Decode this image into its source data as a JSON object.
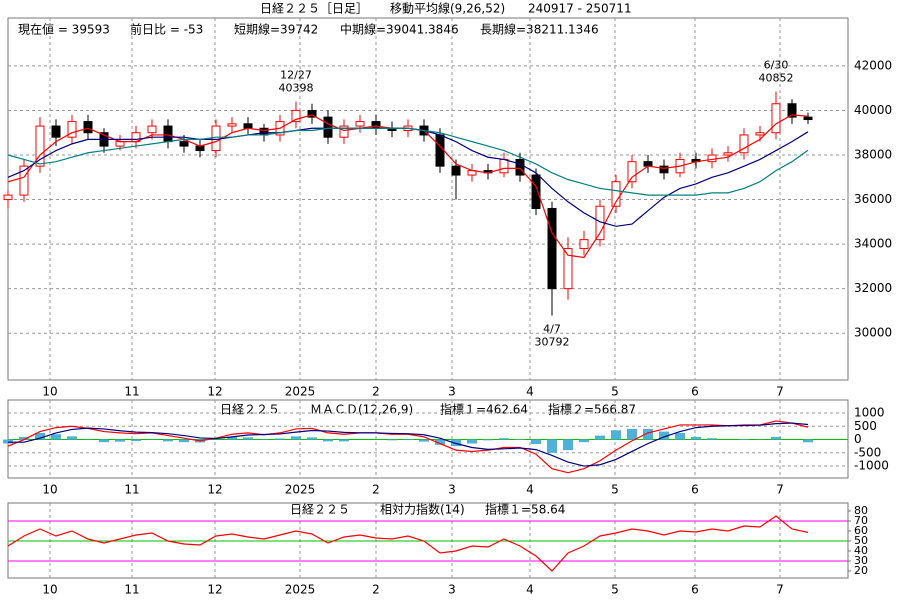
{
  "chart_data": [
    {
      "type": "candlestick",
      "title": "日経２２５［日足］",
      "indicator": "移動平均線(9,26,52)",
      "period": "240917 - 250711",
      "info": [
        "現在値 = 39593",
        "前日比 = -53",
        "短期線=39742",
        "中期線=39041.3846",
        "長期線=38211.1346"
      ],
      "x": [
        0,
        4,
        8,
        12,
        16,
        20,
        24,
        28,
        32,
        36,
        40,
        44,
        48,
        52,
        56,
        60,
        64,
        68,
        72,
        76,
        80,
        84,
        88,
        92,
        96,
        100,
        104,
        108,
        112,
        116,
        120,
        124,
        128,
        132,
        136,
        140,
        144,
        148,
        152,
        156,
        160,
        164,
        168,
        172,
        176,
        180,
        184,
        188,
        192,
        196,
        200
      ],
      "open": [
        36000,
        36200,
        37500,
        39300,
        38800,
        39500,
        39000,
        38400,
        38600,
        39000,
        39300,
        38600,
        38400,
        38200,
        39300,
        39400,
        39200,
        38900,
        39500,
        40000,
        39700,
        38800,
        39300,
        39500,
        39200,
        39100,
        39300,
        38900,
        37500,
        37100,
        37300,
        37200,
        37800,
        37100,
        35600,
        32000,
        33800,
        34200,
        35700,
        36800,
        37700,
        37500,
        37200,
        37800,
        37700,
        38000,
        38100,
        38900,
        39000,
        40300,
        39700
      ],
      "high": [
        36400,
        37800,
        39700,
        39600,
        39800,
        39800,
        39200,
        38900,
        39300,
        39600,
        39600,
        38900,
        38700,
        39600,
        39700,
        39700,
        39400,
        39800,
        40398,
        40300,
        40000,
        39600,
        39800,
        39800,
        39500,
        39600,
        39600,
        39200,
        37800,
        37600,
        37600,
        38100,
        38100,
        37400,
        35900,
        34300,
        34600,
        36000,
        37100,
        38000,
        38000,
        37800,
        38100,
        38100,
        38300,
        38400,
        39200,
        39300,
        40852,
        40500,
        39900
      ],
      "low": [
        35600,
        35900,
        37200,
        38400,
        38500,
        38700,
        38100,
        38200,
        38300,
        38700,
        38300,
        38100,
        37900,
        37900,
        39000,
        38900,
        38600,
        38600,
        39200,
        39400,
        38500,
        38500,
        39000,
        38900,
        38800,
        38800,
        38600,
        37200,
        36000,
        36800,
        36900,
        37000,
        36800,
        35300,
        30792,
        31500,
        33500,
        33900,
        35400,
        36500,
        37200,
        36900,
        37000,
        37400,
        37400,
        37700,
        37800,
        38600,
        38700,
        39400,
        39400
      ],
      "close": [
        36200,
        37500,
        39300,
        38800,
        39500,
        39000,
        38400,
        38600,
        39000,
        39300,
        38600,
        38400,
        38200,
        39300,
        39400,
        39200,
        38900,
        39500,
        40000,
        39700,
        38800,
        39300,
        39500,
        39200,
        39100,
        39300,
        38900,
        37500,
        37100,
        37300,
        37200,
        37800,
        37100,
        35600,
        32000,
        33800,
        34200,
        35700,
        36800,
        37700,
        37500,
        37200,
        37800,
        37700,
        38000,
        38100,
        38900,
        39000,
        40300,
        39700,
        39593
      ],
      "up_color": "#ff0000",
      "down_color": "#000000",
      "series": [
        {
          "color": "#ff0000",
          "values": [
            36800,
            37000,
            38000,
            38600,
            39000,
            39200,
            38900,
            38600,
            38600,
            38900,
            38900,
            38700,
            38400,
            38600,
            39000,
            39200,
            39100,
            39200,
            39600,
            39800,
            39400,
            39100,
            39200,
            39300,
            39200,
            39200,
            39100,
            38400,
            37600,
            37300,
            37200,
            37400,
            37400,
            36600,
            34500,
            33500,
            33400,
            34500,
            35900,
            37000,
            37500,
            37400,
            37500,
            37700,
            37800,
            37900,
            38300,
            38700,
            39400,
            39800,
            39742
          ]
        },
        {
          "color": "#000080",
          "values": [
            37000,
            37300,
            37800,
            38200,
            38500,
            38700,
            38700,
            38700,
            38700,
            38800,
            38800,
            38800,
            38700,
            38700,
            38800,
            38900,
            39000,
            39000,
            39100,
            39200,
            39200,
            39200,
            39200,
            39200,
            39200,
            39200,
            39100,
            38900,
            38600,
            38200,
            37900,
            37800,
            37600,
            37200,
            36500,
            35900,
            35400,
            35000,
            34800,
            34900,
            35500,
            36100,
            36500,
            36700,
            37000,
            37200,
            37500,
            37800,
            38200,
            38600,
            39041.3846
          ]
        },
        {
          "color": "#008080",
          "values": [
            38000,
            37800,
            37600,
            37700,
            37900,
            38100,
            38200,
            38300,
            38400,
            38500,
            38600,
            38700,
            38700,
            38800,
            38800,
            38900,
            38900,
            39000,
            39100,
            39100,
            39200,
            39200,
            39200,
            39200,
            39200,
            39200,
            39100,
            39000,
            38800,
            38600,
            38400,
            38200,
            37900,
            37600,
            37200,
            36900,
            36700,
            36500,
            36400,
            36300,
            36200,
            36200,
            36200,
            36200,
            36300,
            36300,
            36500,
            36800,
            37300,
            37700,
            38211.1346
          ]
        }
      ],
      "annotations": [
        {
          "label": "12/27",
          "value": 40398,
          "x": 72,
          "position": "above"
        },
        {
          "label": "6/30",
          "value": 40852,
          "x": 192,
          "position": "above"
        },
        {
          "label": "4/7",
          "value": 30792,
          "x": 136,
          "position": "below"
        }
      ],
      "xlim": [
        0,
        210
      ],
      "xticks": [
        {
          "value": 10.5,
          "label": "10"
        },
        {
          "value": 31,
          "label": "11"
        },
        {
          "value": 51.75,
          "label": "12"
        },
        {
          "value": 73,
          "label": "2025"
        },
        {
          "value": 92,
          "label": "2"
        },
        {
          "value": 111,
          "label": "3"
        },
        {
          "value": 130.5,
          "label": "4"
        },
        {
          "value": 151.75,
          "label": "5"
        },
        {
          "value": 171.75,
          "label": "6"
        },
        {
          "value": 193,
          "label": "7"
        }
      ],
      "ylim": [
        27900,
        44150
      ],
      "yticks": [
        30000,
        32000,
        34000,
        36000,
        38000,
        40000,
        42000
      ],
      "grid": true
    },
    {
      "type": "macd",
      "title": "日経２２５",
      "indicator": "ＭＡＣＤ(12,26,9)",
      "info": [
        "指標１=462.64",
        "指標２=566.87"
      ],
      "x": [
        0,
        4,
        8,
        12,
        16,
        20,
        24,
        28,
        32,
        36,
        40,
        44,
        48,
        52,
        56,
        60,
        64,
        68,
        72,
        76,
        80,
        84,
        88,
        92,
        96,
        100,
        104,
        108,
        112,
        116,
        120,
        124,
        128,
        132,
        136,
        140,
        144,
        148,
        152,
        156,
        160,
        164,
        168,
        172,
        176,
        180,
        184,
        188,
        192,
        196,
        200
      ],
      "histogram": [
        -150,
        100,
        250,
        200,
        120,
        -10,
        -100,
        -80,
        -60,
        -10,
        -70,
        -100,
        -110,
        10,
        100,
        80,
        -10,
        40,
        120,
        80,
        -70,
        -70,
        0,
        0,
        -30,
        -20,
        -80,
        -200,
        -250,
        -150,
        -30,
        50,
        20,
        -170,
        -500,
        -400,
        -100,
        150,
        350,
        400,
        400,
        300,
        250,
        100,
        50,
        0,
        20,
        10,
        100,
        0,
        -104.23
      ],
      "histogram_color": "#4fb0d8",
      "series": [
        {
          "color": "#ff0000",
          "values": [
            -250,
            0,
            300,
            450,
            500,
            420,
            300,
            250,
            220,
            250,
            150,
            50,
            -50,
            50,
            200,
            250,
            180,
            250,
            400,
            420,
            250,
            200,
            250,
            250,
            200,
            200,
            100,
            -150,
            -400,
            -450,
            -400,
            -300,
            -300,
            -550,
            -1100,
            -1250,
            -1100,
            -800,
            -400,
            -50,
            250,
            400,
            550,
            550,
            550,
            520,
            550,
            550,
            700,
            620,
            462.64
          ]
        },
        {
          "color": "#000080",
          "values": [
            -100,
            -100,
            50,
            250,
            380,
            430,
            400,
            330,
            280,
            260,
            220,
            150,
            60,
            40,
            100,
            170,
            190,
            210,
            280,
            340,
            320,
            270,
            250,
            250,
            230,
            220,
            180,
            50,
            -150,
            -300,
            -370,
            -350,
            -320,
            -380,
            -600,
            -850,
            -1000,
            -950,
            -750,
            -450,
            -150,
            100,
            300,
            450,
            500,
            520,
            530,
            540,
            600,
            620,
            566.87
          ]
        }
      ],
      "hlines": [
        {
          "value": 0,
          "color": "#00c000"
        }
      ],
      "xlim": [
        0,
        210
      ],
      "xticks": [
        {
          "value": 10.5,
          "label": "10"
        },
        {
          "value": 31,
          "label": "11"
        },
        {
          "value": 51.75,
          "label": "12"
        },
        {
          "value": 73,
          "label": "2025"
        },
        {
          "value": 92,
          "label": "2"
        },
        {
          "value": 111,
          "label": "3"
        },
        {
          "value": 130.5,
          "label": "4"
        },
        {
          "value": 151.75,
          "label": "5"
        },
        {
          "value": 171.75,
          "label": "6"
        },
        {
          "value": 193,
          "label": "7"
        }
      ],
      "ylim": [
        -1450,
        1490
      ],
      "yticks": [
        1000,
        500,
        0,
        -500,
        -1000
      ],
      "grid": true
    },
    {
      "type": "rsi",
      "title": "日経２２５",
      "indicator": "相対力指数(14)",
      "info": [
        "指標１=58.64"
      ],
      "x": [
        0,
        4,
        8,
        12,
        16,
        20,
        24,
        28,
        32,
        36,
        40,
        44,
        48,
        52,
        56,
        60,
        64,
        68,
        72,
        76,
        80,
        84,
        88,
        92,
        96,
        100,
        104,
        108,
        112,
        116,
        120,
        124,
        128,
        132,
        136,
        140,
        144,
        148,
        152,
        156,
        160,
        164,
        168,
        172,
        176,
        180,
        184,
        188,
        192,
        196,
        200
      ],
      "series": [
        {
          "color": "#ff0000",
          "values": [
            45,
            55,
            62,
            55,
            60,
            52,
            48,
            52,
            56,
            58,
            50,
            47,
            46,
            55,
            57,
            54,
            52,
            56,
            60,
            57,
            48,
            54,
            56,
            53,
            52,
            55,
            50,
            38,
            40,
            45,
            44,
            52,
            45,
            35,
            20,
            38,
            45,
            55,
            58,
            62,
            60,
            56,
            60,
            59,
            62,
            60,
            65,
            64,
            75,
            62,
            58.64
          ]
        }
      ],
      "hlines": [
        {
          "value": 70,
          "color": "#ff00ff"
        },
        {
          "value": 50,
          "color": "#00c000"
        },
        {
          "value": 30,
          "color": "#ff00ff"
        }
      ],
      "xlim": [
        0,
        210
      ],
      "xticks": [
        {
          "value": 10.5,
          "label": "10"
        },
        {
          "value": 31,
          "label": "11"
        },
        {
          "value": 51.75,
          "label": "12"
        },
        {
          "value": 73,
          "label": "2025"
        },
        {
          "value": 92,
          "label": "2"
        },
        {
          "value": 111,
          "label": "3"
        },
        {
          "value": 130.5,
          "label": "4"
        },
        {
          "value": 151.75,
          "label": "5"
        },
        {
          "value": 171.75,
          "label": "6"
        },
        {
          "value": 193,
          "label": "7"
        }
      ],
      "ylim": [
        13,
        88
      ],
      "yticks": [
        80,
        70,
        60,
        50,
        40,
        30,
        20
      ],
      "grid": false
    }
  ]
}
